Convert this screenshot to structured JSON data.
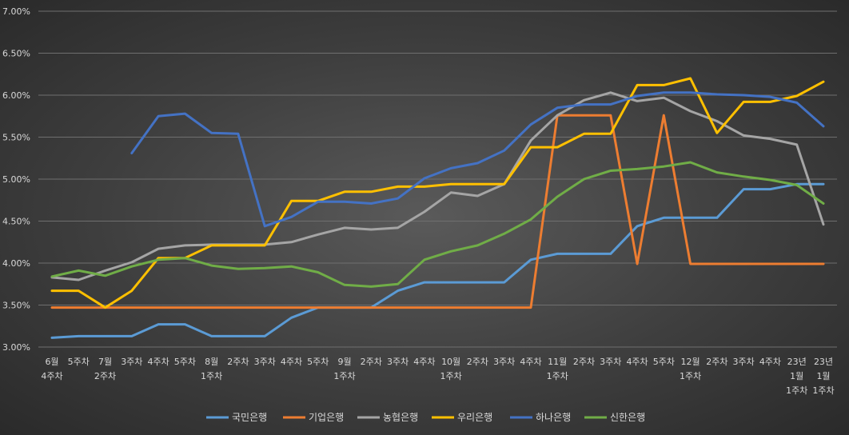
{
  "chart_data": {
    "type": "line",
    "title": "",
    "xlabel": "",
    "ylabel": "",
    "ylim": [
      3.0,
      7.0
    ],
    "y_ticks": [
      "3.00%",
      "3.50%",
      "4.00%",
      "4.50%",
      "5.00%",
      "5.50%",
      "6.00%",
      "6.50%",
      "7.00%"
    ],
    "grid": "horizontal",
    "legend_position": "bottom",
    "categories": [
      [
        "6월",
        "4주차"
      ],
      [
        "5주차"
      ],
      [
        "7월",
        "2주차"
      ],
      [
        "3주차"
      ],
      [
        "4주차"
      ],
      [
        "5주차"
      ],
      [
        "8월",
        "1주차"
      ],
      [
        "2주차"
      ],
      [
        "3주차"
      ],
      [
        "4주차"
      ],
      [
        "5주차"
      ],
      [
        "9월",
        "1주차"
      ],
      [
        "2주차"
      ],
      [
        "3주차"
      ],
      [
        "4주차"
      ],
      [
        "10월",
        "1주차"
      ],
      [
        "2주차"
      ],
      [
        "3주차"
      ],
      [
        "4주차"
      ],
      [
        "11월",
        "1주차"
      ],
      [
        "2주차"
      ],
      [
        "3주차"
      ],
      [
        "4주차"
      ],
      [
        "5주차"
      ],
      [
        "12월",
        "1주차"
      ],
      [
        "2주차"
      ],
      [
        "3주차"
      ],
      [
        "4주차"
      ],
      [
        "23년",
        "1월",
        "1주차"
      ],
      [
        "23년",
        "1월",
        "1주차"
      ]
    ],
    "series": [
      {
        "name": "국민은행",
        "color": "#5b9bd5",
        "values": [
          3.11,
          3.13,
          3.13,
          3.13,
          3.27,
          3.27,
          3.13,
          3.13,
          3.13,
          3.35,
          3.47,
          3.47,
          3.47,
          3.67,
          3.77,
          3.77,
          3.77,
          3.77,
          4.04,
          4.11,
          4.11,
          4.11,
          4.44,
          4.54,
          4.54,
          4.54,
          4.88,
          4.88,
          4.94,
          4.94
        ]
      },
      {
        "name": "기업은행",
        "color": "#ed7d31",
        "values": [
          3.47,
          3.47,
          3.47,
          3.47,
          3.47,
          3.47,
          3.47,
          3.47,
          3.47,
          3.47,
          3.47,
          3.47,
          3.47,
          3.47,
          3.47,
          3.47,
          3.47,
          3.47,
          3.47,
          5.76,
          5.76,
          5.76,
          3.99,
          5.76,
          3.99,
          3.99,
          3.99,
          3.99,
          3.99,
          3.99
        ]
      },
      {
        "name": "농협은행",
        "color": "#a5a5a5",
        "values": [
          3.83,
          3.8,
          3.91,
          4.01,
          4.17,
          4.21,
          4.22,
          4.22,
          4.22,
          4.25,
          4.34,
          4.42,
          4.4,
          4.42,
          4.61,
          4.84,
          4.8,
          4.94,
          5.46,
          5.76,
          5.94,
          6.03,
          5.93,
          5.97,
          5.81,
          5.69,
          5.52,
          5.48,
          5.41,
          4.46
        ]
      },
      {
        "name": "우리은행",
        "color": "#ffc000",
        "values": [
          3.67,
          3.67,
          3.47,
          3.67,
          4.06,
          4.06,
          4.21,
          4.21,
          4.21,
          4.74,
          4.74,
          4.85,
          4.85,
          4.91,
          4.91,
          4.94,
          4.94,
          4.94,
          5.38,
          5.38,
          5.54,
          5.54,
          6.12,
          6.12,
          6.2,
          5.55,
          5.92,
          5.92,
          5.99,
          6.16
        ]
      },
      {
        "name": "하나은행",
        "color": "#4472c4",
        "values": [
          null,
          null,
          null,
          5.31,
          5.75,
          5.78,
          5.55,
          5.54,
          4.44,
          4.55,
          4.73,
          4.73,
          4.71,
          4.77,
          5.01,
          5.13,
          5.19,
          5.34,
          5.65,
          5.85,
          5.89,
          5.89,
          5.99,
          6.03,
          6.03,
          6.01,
          6.0,
          5.98,
          5.91,
          5.63
        ]
      },
      {
        "name": "신한은행",
        "color": "#70ad47",
        "values": [
          3.84,
          3.91,
          3.85,
          3.96,
          4.04,
          4.06,
          3.97,
          3.93,
          3.94,
          3.96,
          3.89,
          3.74,
          3.72,
          3.75,
          4.04,
          4.14,
          4.21,
          4.35,
          4.52,
          4.79,
          5.0,
          5.1,
          5.12,
          5.15,
          5.2,
          5.08,
          5.03,
          4.99,
          4.93,
          4.71
        ]
      }
    ]
  }
}
